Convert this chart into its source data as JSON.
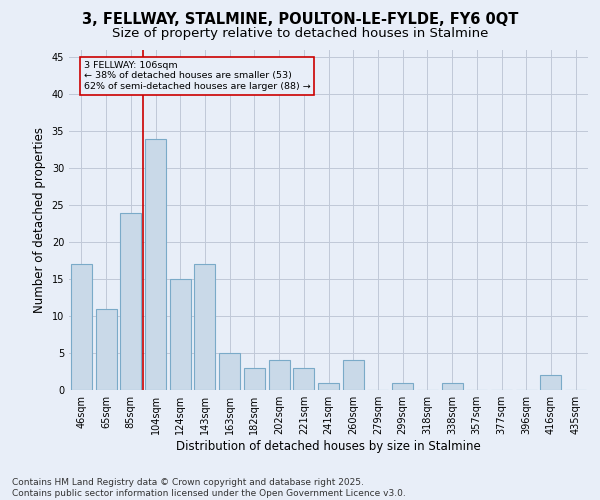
{
  "title_line1": "3, FELLWAY, STALMINE, POULTON-LE-FYLDE, FY6 0QT",
  "title_line2": "Size of property relative to detached houses in Stalmine",
  "xlabel": "Distribution of detached houses by size in Stalmine",
  "ylabel": "Number of detached properties",
  "categories": [
    "46sqm",
    "65sqm",
    "85sqm",
    "104sqm",
    "124sqm",
    "143sqm",
    "163sqm",
    "182sqm",
    "202sqm",
    "221sqm",
    "241sqm",
    "260sqm",
    "279sqm",
    "299sqm",
    "318sqm",
    "338sqm",
    "357sqm",
    "377sqm",
    "396sqm",
    "416sqm",
    "435sqm"
  ],
  "values": [
    17,
    11,
    24,
    34,
    15,
    17,
    5,
    3,
    4,
    3,
    1,
    4,
    0,
    1,
    0,
    1,
    0,
    0,
    0,
    2,
    0
  ],
  "bar_color": "#c9d9e8",
  "bar_edge_color": "#7aaac8",
  "bar_edge_width": 0.8,
  "grid_color": "#c0c8d8",
  "bg_color": "#e8eef8",
  "vline_x_index": 3,
  "vline_color": "#cc0000",
  "annotation_text": "3 FELLWAY: 106sqm\n← 38% of detached houses are smaller (53)\n62% of semi-detached houses are larger (88) →",
  "annotation_box_color": "#cc0000",
  "ylim": [
    0,
    46
  ],
  "yticks": [
    0,
    5,
    10,
    15,
    20,
    25,
    30,
    35,
    40,
    45
  ],
  "footer_text": "Contains HM Land Registry data © Crown copyright and database right 2025.\nContains public sector information licensed under the Open Government Licence v3.0.",
  "title_fontsize": 10.5,
  "subtitle_fontsize": 9.5,
  "xlabel_fontsize": 8.5,
  "ylabel_fontsize": 8.5,
  "tick_fontsize": 7,
  "footer_fontsize": 6.5
}
